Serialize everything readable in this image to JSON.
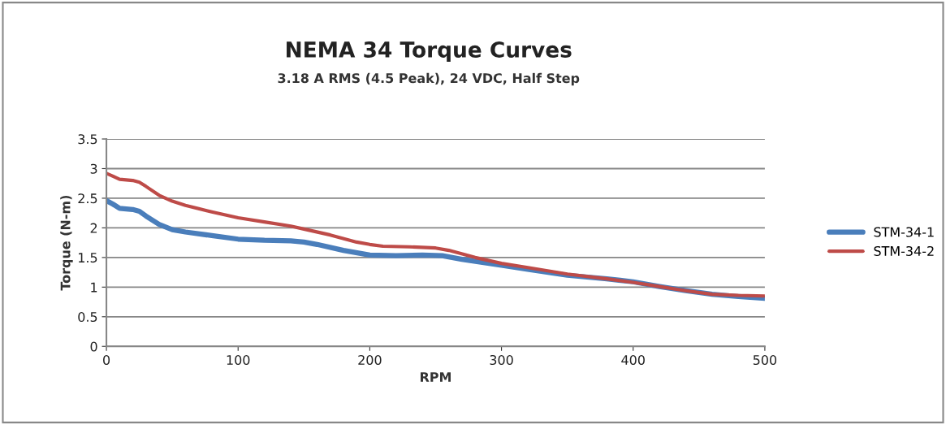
{
  "chart_data": {
    "type": "line",
    "title": "NEMA 34 Torque Curves",
    "subtitle": "3.18 A RMS (4.5 Peak), 24 VDC, Half Step",
    "xlabel": "RPM",
    "ylabel": "Torque (N-m)",
    "xlim": [
      0,
      500
    ],
    "xticks": [
      0,
      100,
      200,
      300,
      400,
      500
    ],
    "ylim": [
      0,
      3.5
    ],
    "yticks": [
      0,
      0.5,
      1,
      1.5,
      2,
      2.5,
      3,
      3.5
    ],
    "grid": "y",
    "legend": "right",
    "marker": "none",
    "line_style": "solid",
    "series": [
      {
        "name": "STM-34-1",
        "color": "#4a7ebb",
        "x": [
          0,
          5,
          10,
          20,
          25,
          30,
          40,
          50,
          60,
          80,
          100,
          120,
          140,
          150,
          160,
          180,
          200,
          220,
          240,
          255,
          270,
          300,
          320,
          350,
          380,
          400,
          420,
          440,
          460,
          480,
          500
        ],
        "values": [
          2.46,
          2.4,
          2.33,
          2.31,
          2.28,
          2.2,
          2.06,
          1.97,
          1.93,
          1.87,
          1.81,
          1.79,
          1.78,
          1.76,
          1.72,
          1.62,
          1.54,
          1.53,
          1.54,
          1.53,
          1.47,
          1.37,
          1.3,
          1.2,
          1.14,
          1.09,
          1.01,
          0.94,
          0.88,
          0.84,
          0.81
        ]
      },
      {
        "name": "STM-34-2",
        "color": "#be4b48",
        "x": [
          0,
          5,
          10,
          20,
          25,
          30,
          40,
          50,
          60,
          80,
          100,
          120,
          140,
          150,
          170,
          190,
          200,
          210,
          230,
          250,
          260,
          280,
          300,
          320,
          350,
          380,
          400,
          420,
          440,
          460,
          480,
          500
        ],
        "values": [
          2.92,
          2.87,
          2.82,
          2.8,
          2.77,
          2.7,
          2.55,
          2.45,
          2.38,
          2.27,
          2.17,
          2.1,
          2.03,
          1.98,
          1.88,
          1.76,
          1.72,
          1.69,
          1.68,
          1.66,
          1.62,
          1.5,
          1.4,
          1.33,
          1.22,
          1.14,
          1.08,
          1.01,
          0.94,
          0.88,
          0.86,
          0.85
        ]
      }
    ]
  }
}
